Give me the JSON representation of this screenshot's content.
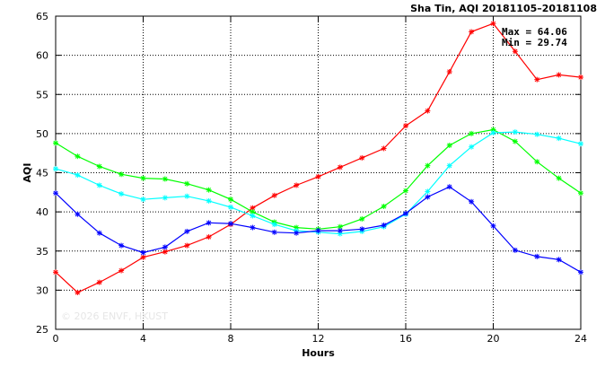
{
  "chart_data": {
    "type": "line",
    "title": "Sha Tin, AQI 20181105–20181108",
    "xlabel": "Hours",
    "ylabel": "AQI",
    "xlim": [
      0,
      24
    ],
    "ylim": [
      25,
      65
    ],
    "xticks": [
      "0",
      "4",
      "8",
      "12",
      "16",
      "20",
      "24"
    ],
    "yticks": [
      "25",
      "30",
      "35",
      "40",
      "45",
      "50",
      "55",
      "60",
      "65"
    ],
    "grid": true,
    "annotations": {
      "max": "Max = 64.06",
      "min": "Min = 29.74"
    },
    "watermark": "© 2026 ENVF, HKUST",
    "x": [
      0,
      1,
      2,
      3,
      4,
      5,
      6,
      7,
      8,
      9,
      10,
      11,
      12,
      13,
      14,
      15,
      16,
      17,
      18,
      19,
      20,
      21,
      22,
      23,
      24
    ],
    "series": [
      {
        "color": "#ff0000",
        "values": [
          32.3,
          29.7,
          31.0,
          32.5,
          34.2,
          34.9,
          35.7,
          36.8,
          38.4,
          40.5,
          42.1,
          43.4,
          44.5,
          45.7,
          46.9,
          48.1,
          51.0,
          52.9,
          57.9,
          63.0,
          64.06,
          60.5,
          56.9,
          57.5,
          57.2
        ]
      },
      {
        "color": "#00ff00",
        "values": [
          48.8,
          47.1,
          45.8,
          44.8,
          44.3,
          44.2,
          43.6,
          42.8,
          41.6,
          40.0,
          38.7,
          38.0,
          37.8,
          38.1,
          39.1,
          40.7,
          42.7,
          45.9,
          48.5,
          50.0,
          50.5,
          49.0,
          46.4,
          44.3,
          42.4
        ]
      },
      {
        "color": "#00ffff",
        "values": [
          45.5,
          44.7,
          43.4,
          42.3,
          41.6,
          41.8,
          42.0,
          41.4,
          40.6,
          39.5,
          38.4,
          37.6,
          37.4,
          37.2,
          37.5,
          38.1,
          39.7,
          42.6,
          45.9,
          48.3,
          50.1,
          50.2,
          49.9,
          49.4,
          48.7
        ]
      },
      {
        "color": "#0000ff",
        "values": [
          42.4,
          39.7,
          37.3,
          35.7,
          34.8,
          35.5,
          37.5,
          38.6,
          38.5,
          38.0,
          37.4,
          37.3,
          37.6,
          37.6,
          37.8,
          38.3,
          39.8,
          41.9,
          43.2,
          41.3,
          38.2,
          35.1,
          34.3,
          33.9,
          32.3
        ]
      }
    ]
  }
}
